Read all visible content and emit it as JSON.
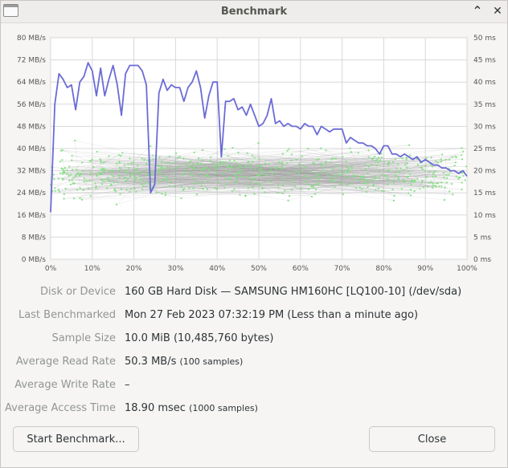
{
  "window": {
    "title": "Benchmark"
  },
  "titlebar": {
    "minimize_symbol": "⌃",
    "close_symbol": "✕"
  },
  "chart_data": {
    "type": "line",
    "x_axis": {
      "range": [
        0,
        100
      ],
      "tick_labels": [
        "0%",
        "10%",
        "20%",
        "30%",
        "40%",
        "50%",
        "60%",
        "70%",
        "80%",
        "90%",
        "100%"
      ]
    },
    "y_left": {
      "range": [
        0,
        80
      ],
      "unit": "MB/s",
      "tick_labels": [
        "0 MB/s",
        "8 MB/s",
        "16 MB/s",
        "24 MB/s",
        "32 MB/s",
        "40 MB/s",
        "48 MB/s",
        "56 MB/s",
        "64 MB/s",
        "72 MB/s",
        "80 MB/s"
      ]
    },
    "y_right": {
      "range": [
        0,
        50
      ],
      "unit": "ms",
      "tick_labels": [
        "0 ms",
        "5 ms",
        "10 ms",
        "15 ms",
        "20 ms",
        "25 ms",
        "30 ms",
        "35 ms",
        "40 ms",
        "45 ms",
        "50 ms"
      ]
    },
    "grid": true,
    "read_rate_color": "#6b6bd6",
    "access_time_color": "#7ee07e",
    "read_rate": {
      "x": [
        0,
        1,
        2,
        3,
        4,
        5,
        6,
        7,
        8,
        9,
        10,
        11,
        12,
        13,
        14,
        15,
        16,
        17,
        18,
        19,
        20,
        21,
        22,
        23,
        24,
        25,
        26,
        27,
        28,
        29,
        30,
        31,
        32,
        33,
        34,
        35,
        36,
        37,
        38,
        39,
        40,
        41,
        42,
        43,
        44,
        45,
        46,
        47,
        48,
        49,
        50,
        51,
        52,
        53,
        54,
        55,
        56,
        57,
        58,
        59,
        60,
        61,
        62,
        63,
        64,
        65,
        66,
        67,
        68,
        69,
        70,
        71,
        72,
        73,
        74,
        75,
        76,
        77,
        78,
        79,
        80,
        81,
        82,
        83,
        84,
        85,
        86,
        87,
        88,
        89,
        90,
        91,
        92,
        93,
        94,
        95,
        96,
        97,
        98,
        99,
        100
      ],
      "values": [
        17,
        56,
        67,
        65,
        62,
        63,
        54,
        64,
        66,
        71,
        68,
        59,
        69,
        59,
        65,
        70,
        63,
        52,
        67,
        70,
        70,
        70,
        68,
        63,
        24,
        27,
        60,
        65,
        61,
        63,
        62,
        62,
        57,
        62,
        64,
        68,
        62,
        51,
        59,
        64,
        64,
        37,
        57,
        57,
        58,
        54,
        55,
        52,
        56,
        52,
        48,
        49,
        52,
        58,
        49,
        50,
        48,
        49,
        48,
        48,
        47,
        49,
        48,
        48,
        45,
        48,
        47,
        46,
        47,
        47,
        47,
        42,
        44,
        43,
        42,
        42,
        41,
        41,
        40,
        38,
        41,
        41,
        38,
        38,
        37,
        38,
        37,
        36,
        37,
        35,
        36,
        35,
        34,
        34,
        33,
        33,
        32,
        32,
        31,
        32,
        30
      ]
    }
  },
  "info": {
    "disk": {
      "label": "Disk or Device",
      "value": "160 GB Hard Disk — SAMSUNG HM160HC [LQ100-10] (/dev/sda)"
    },
    "last": {
      "label": "Last Benchmarked",
      "value": "Mon 27 Feb 2023 07:32:19 PM (Less than a minute ago)"
    },
    "sample": {
      "label": "Sample Size",
      "value": "10.0 MiB (10,485,760 bytes)"
    },
    "read": {
      "label": "Average Read Rate",
      "value": "50.3 MB/s",
      "note": "(100 samples)"
    },
    "write": {
      "label": "Average Write Rate",
      "value": "–"
    },
    "access": {
      "label": "Average Access Time",
      "value": "18.90 msec",
      "note": "(1000 samples)"
    }
  },
  "buttons": {
    "start": "Start Benchmark...",
    "close": "Close"
  }
}
